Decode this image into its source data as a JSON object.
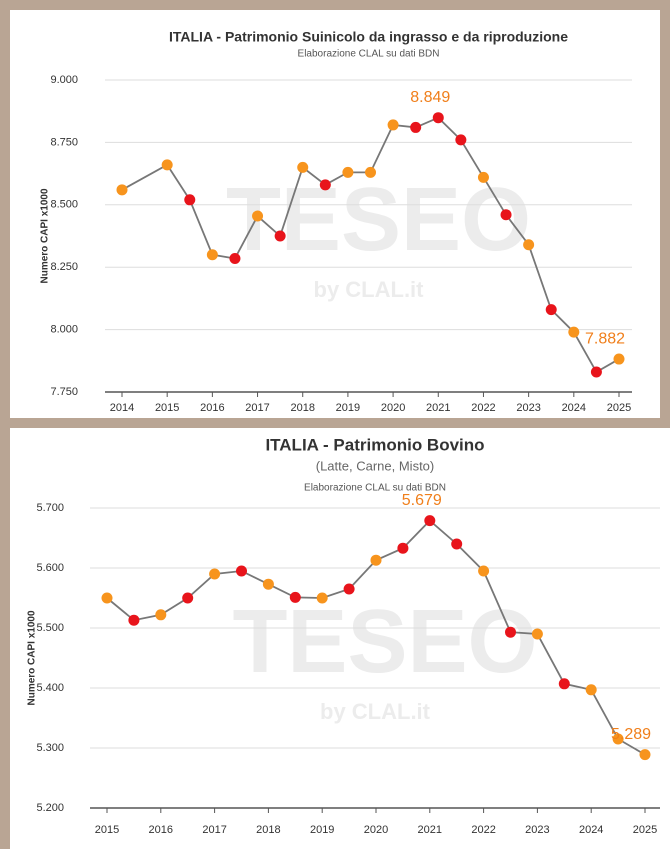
{
  "chart_data": [
    {
      "type": "line",
      "title": "ITALIA - Patrimonio Suinicolo da ingrasso e da riproduzione",
      "subtitle": "Elaborazione CLAL su dati BDN",
      "y_label": "Numero CAPI x1000",
      "watermark": "TESEO",
      "watermark_sub": "by CLAL.it",
      "x": [
        2014,
        2015,
        2015.5,
        2016,
        2016.5,
        2017,
        2017.5,
        2018,
        2018.5,
        2019,
        2019.5,
        2020,
        2020.5,
        2021,
        2021.5,
        2022,
        2022.5,
        2023,
        2023.5,
        2024,
        2024.5,
        2025
      ],
      "values": [
        8560,
        8660,
        8520,
        8300,
        8285,
        8455,
        8375,
        8650,
        8580,
        8630,
        8630,
        8820,
        8810,
        8849,
        8760,
        8610,
        8460,
        8340,
        8080,
        7990,
        7830,
        7882
      ],
      "value_labels": [
        null,
        null,
        null,
        null,
        null,
        null,
        null,
        null,
        null,
        null,
        null,
        null,
        null,
        "8.849",
        null,
        null,
        null,
        null,
        null,
        null,
        null,
        "7.882"
      ],
      "point_colors": [
        "#f7941d",
        "#f7941d",
        "#e8141b",
        "#f7941d",
        "#e8141b",
        "#f7941d",
        "#e8141b",
        "#f7941d",
        "#e8141b",
        "#f7941d",
        "#f7941d",
        "#f7941d",
        "#e8141b",
        "#e8141b",
        "#e8141b",
        "#f7941d",
        "#e8141b",
        "#f7941d",
        "#e8141b",
        "#f7941d",
        "#e8141b",
        "#f7941d"
      ],
      "color": "#777777",
      "xlim": [
        2014,
        2025
      ],
      "xticks": [
        2014,
        2015,
        2016,
        2017,
        2018,
        2019,
        2020,
        2021,
        2022,
        2023,
        2024,
        2025
      ],
      "ylim": [
        7750,
        9000
      ],
      "yticks": [
        {
          "value": 7750,
          "label": "7.750"
        },
        {
          "value": 8000,
          "label": "8.000"
        },
        {
          "value": 8250,
          "label": "8.250"
        },
        {
          "value": 8500,
          "label": "8.500"
        },
        {
          "value": 8750,
          "label": "8.750"
        },
        {
          "value": 9000,
          "label": "9.000"
        }
      ],
      "grid": true
    },
    {
      "type": "line",
      "title": "ITALIA - Patrimonio Bovino",
      "subtitle": "(Latte, Carne, Misto)",
      "source": "Elaborazione CLAL su dati BDN",
      "y_label": "Numero CAPI x1000",
      "watermark": "TESEO",
      "watermark_sub": "by CLAL.it",
      "x": [
        2015,
        2015.5,
        2016,
        2016.5,
        2017,
        2017.5,
        2018,
        2018.5,
        2019,
        2019.5,
        2020,
        2020.5,
        2021,
        2021.5,
        2022,
        2022.5,
        2023,
        2023.5,
        2024,
        2024.5,
        2025
      ],
      "values": [
        5550,
        5513,
        5522,
        5550,
        5590,
        5595,
        5573,
        5551,
        5550,
        5565,
        5613,
        5633,
        5679,
        5640,
        5595,
        5493,
        5490,
        5407,
        5397,
        5315,
        5289
      ],
      "value_labels": [
        null,
        null,
        null,
        null,
        null,
        null,
        null,
        null,
        null,
        null,
        null,
        null,
        "5.679",
        null,
        null,
        null,
        null,
        null,
        null,
        null,
        "5.289"
      ],
      "point_colors": [
        "#f7941d",
        "#e8141b",
        "#f7941d",
        "#e8141b",
        "#f7941d",
        "#e8141b",
        "#f7941d",
        "#e8141b",
        "#f7941d",
        "#e8141b",
        "#f7941d",
        "#e8141b",
        "#e8141b",
        "#e8141b",
        "#f7941d",
        "#e8141b",
        "#f7941d",
        "#e8141b",
        "#f7941d",
        "#f7941d",
        "#f7941d"
      ],
      "color": "#777777",
      "xlim": [
        2015,
        2025
      ],
      "xticks": [
        2015,
        2016,
        2017,
        2018,
        2019,
        2020,
        2021,
        2022,
        2023,
        2024,
        2025
      ],
      "ylim": [
        5200,
        5700
      ],
      "yticks": [
        {
          "value": 5200,
          "label": "5.200"
        },
        {
          "value": 5300,
          "label": "5.300"
        },
        {
          "value": 5400,
          "label": "5.400"
        },
        {
          "value": 5500,
          "label": "5.500"
        },
        {
          "value": 5600,
          "label": "5.600"
        },
        {
          "value": 5700,
          "label": "5.700"
        }
      ],
      "grid": true
    }
  ]
}
